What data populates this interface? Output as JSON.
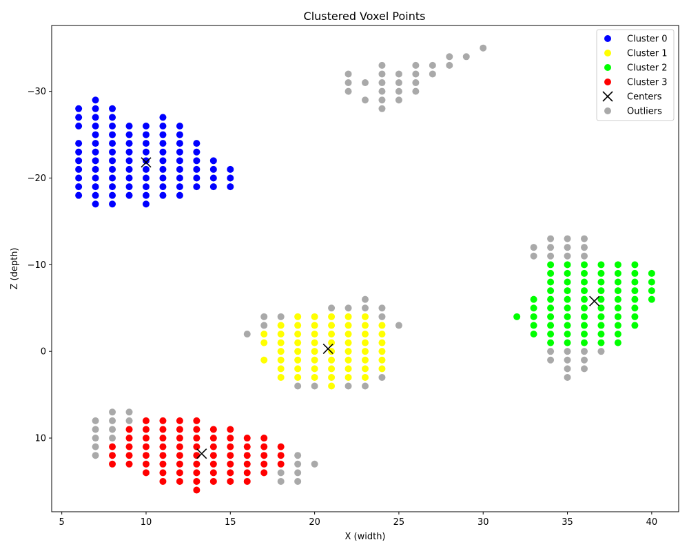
{
  "chart_data": {
    "type": "scatter",
    "title": "Clustered Voxel Points",
    "xlabel": "X (width)",
    "ylabel": "Z (depth)",
    "xlim": [
      4.4,
      41.6
    ],
    "ylim": [
      18.5,
      -37.6
    ],
    "y_inverted": true,
    "x_ticks": [
      5,
      10,
      15,
      20,
      25,
      30,
      35,
      40
    ],
    "x_tick_labels": [
      "5",
      "10",
      "15",
      "20",
      "25",
      "30",
      "35",
      "40"
    ],
    "y_ticks": [
      -30,
      -20,
      -10,
      0,
      10
    ],
    "y_tick_labels": [
      "−30",
      "−20",
      "−10",
      "0",
      "10"
    ],
    "grid": false,
    "legend_position": "top-right",
    "legend": [
      "Cluster 0",
      "Cluster 1",
      "Cluster 2",
      "Cluster 3",
      "Centers",
      "Outliers"
    ],
    "colors": {
      "cluster_0": "#0000ff",
      "cluster_1": "#ffff00",
      "cluster_2": "#00ff00",
      "cluster_3": "#ff0000",
      "centers": "#000000",
      "outliers": "#a9a9a9"
    },
    "series": [
      {
        "name": "Cluster 0",
        "color": "#0000ff",
        "columns": [
          {
            "x": 6,
            "zs": [
              -28,
              -27,
              -26,
              -24,
              -23,
              -22,
              -21,
              -20,
              -19,
              -18
            ]
          },
          {
            "x": 7,
            "zs": [
              -29,
              -28,
              -27,
              -26,
              -25,
              -24,
              -23,
              -22,
              -21,
              -20,
              -19,
              -18,
              -17
            ]
          },
          {
            "x": 8,
            "zs": [
              -28,
              -27,
              -26,
              -25,
              -24,
              -23,
              -22,
              -21,
              -20,
              -19,
              -18,
              -17
            ]
          },
          {
            "x": 9,
            "zs": [
              -26,
              -25,
              -24,
              -23,
              -22,
              -21,
              -20,
              -19,
              -18
            ]
          },
          {
            "x": 10,
            "zs": [
              -26,
              -25,
              -24,
              -23,
              -22,
              -21,
              -20,
              -19,
              -18,
              -17
            ]
          },
          {
            "x": 11,
            "zs": [
              -27,
              -26,
              -25,
              -24,
              -23,
              -22,
              -21,
              -20,
              -19,
              -18
            ]
          },
          {
            "x": 12,
            "zs": [
              -26,
              -25,
              -24,
              -23,
              -22,
              -21,
              -20,
              -19,
              -18
            ]
          },
          {
            "x": 13,
            "zs": [
              -24,
              -23,
              -22,
              -21,
              -20,
              -19
            ]
          },
          {
            "x": 14,
            "zs": [
              -22,
              -21,
              -20,
              -19
            ]
          },
          {
            "x": 15,
            "zs": [
              -21,
              -20,
              -19
            ]
          }
        ]
      },
      {
        "name": "Cluster 1",
        "color": "#ffff00",
        "columns": [
          {
            "x": 17,
            "zs": [
              -2,
              -1,
              1
            ]
          },
          {
            "x": 18,
            "zs": [
              -3,
              -2,
              -1,
              0,
              1,
              2,
              3
            ]
          },
          {
            "x": 19,
            "zs": [
              -4,
              -3,
              -2,
              -1,
              0,
              1,
              2,
              3
            ]
          },
          {
            "x": 20,
            "zs": [
              -4,
              -3,
              -2,
              -1,
              0,
              1,
              2,
              3
            ]
          },
          {
            "x": 21,
            "zs": [
              -4,
              -3,
              -2,
              -1,
              0,
              1,
              2,
              3,
              4
            ]
          },
          {
            "x": 22,
            "zs": [
              -4,
              -3,
              -2,
              -1,
              0,
              1,
              2,
              3
            ]
          },
          {
            "x": 23,
            "zs": [
              -4,
              -3,
              -2,
              -1,
              0,
              1,
              2,
              3
            ]
          },
          {
            "x": 24,
            "zs": [
              -3,
              -2,
              -1,
              0,
              1,
              2
            ]
          }
        ]
      },
      {
        "name": "Cluster 2",
        "color": "#00ff00",
        "columns": [
          {
            "x": 32,
            "zs": [
              -4
            ]
          },
          {
            "x": 33,
            "zs": [
              -6,
              -5,
              -4,
              -3,
              -2
            ]
          },
          {
            "x": 34,
            "zs": [
              -10,
              -9,
              -8,
              -7,
              -6,
              -5,
              -4,
              -3,
              -2,
              -1
            ]
          },
          {
            "x": 35,
            "zs": [
              -10,
              -9,
              -8,
              -7,
              -6,
              -5,
              -4,
              -3,
              -2,
              -1
            ]
          },
          {
            "x": 36,
            "zs": [
              -10,
              -9,
              -8,
              -7,
              -6,
              -5,
              -4,
              -3,
              -2,
              -1
            ]
          },
          {
            "x": 37,
            "zs": [
              -10,
              -9,
              -8,
              -7,
              -6,
              -5,
              -4,
              -3,
              -2,
              -1
            ]
          },
          {
            "x": 38,
            "zs": [
              -10,
              -9,
              -8,
              -7,
              -6,
              -5,
              -4,
              -3,
              -2,
              -1
            ]
          },
          {
            "x": 39,
            "zs": [
              -10,
              -9,
              -8,
              -7,
              -6,
              -5,
              -4,
              -3
            ]
          },
          {
            "x": 40,
            "zs": [
              -9,
              -8,
              -7,
              -6
            ]
          }
        ]
      },
      {
        "name": "Cluster 3",
        "color": "#ff0000",
        "columns": [
          {
            "x": 8,
            "zs": [
              11,
              12,
              13
            ]
          },
          {
            "x": 9,
            "zs": [
              9,
              10,
              11,
              12,
              13
            ]
          },
          {
            "x": 10,
            "zs": [
              8,
              9,
              10,
              11,
              12,
              13,
              14
            ]
          },
          {
            "x": 11,
            "zs": [
              8,
              9,
              10,
              11,
              12,
              13,
              14,
              15
            ]
          },
          {
            "x": 12,
            "zs": [
              8,
              9,
              10,
              11,
              12,
              13,
              14,
              15
            ]
          },
          {
            "x": 13,
            "zs": [
              8,
              9,
              10,
              11,
              12,
              13,
              14,
              15,
              16
            ]
          },
          {
            "x": 14,
            "zs": [
              9,
              10,
              11,
              12,
              13,
              14,
              15
            ]
          },
          {
            "x": 15,
            "zs": [
              9,
              10,
              11,
              12,
              13,
              14,
              15
            ]
          },
          {
            "x": 16,
            "zs": [
              10,
              11,
              12,
              13,
              14,
              15
            ]
          },
          {
            "x": 17,
            "zs": [
              10,
              11,
              12,
              13,
              14
            ]
          },
          {
            "x": 18,
            "zs": [
              11,
              12,
              13
            ]
          }
        ]
      },
      {
        "name": "Outliers",
        "color": "#a9a9a9",
        "points": [
          [
            22,
            -32
          ],
          [
            22,
            -31
          ],
          [
            22,
            -30
          ],
          [
            23,
            -31
          ],
          [
            23,
            -29
          ],
          [
            24,
            -33
          ],
          [
            24,
            -32
          ],
          [
            24,
            -31
          ],
          [
            24,
            -30
          ],
          [
            24,
            -29
          ],
          [
            24,
            -28
          ],
          [
            25,
            -32
          ],
          [
            25,
            -31
          ],
          [
            25,
            -30
          ],
          [
            25,
            -29
          ],
          [
            26,
            -33
          ],
          [
            26,
            -32
          ],
          [
            26,
            -31
          ],
          [
            26,
            -30
          ],
          [
            27,
            -33
          ],
          [
            27,
            -32
          ],
          [
            28,
            -34
          ],
          [
            28,
            -33
          ],
          [
            29,
            -34
          ],
          [
            30,
            -35
          ],
          [
            33,
            -12
          ],
          [
            33,
            -11
          ],
          [
            34,
            -13
          ],
          [
            34,
            -12
          ],
          [
            34,
            -11
          ],
          [
            34,
            0
          ],
          [
            34,
            1
          ],
          [
            35,
            -13
          ],
          [
            35,
            -12
          ],
          [
            35,
            -11
          ],
          [
            35,
            0
          ],
          [
            35,
            1
          ],
          [
            35,
            2
          ],
          [
            35,
            3
          ],
          [
            36,
            -13
          ],
          [
            36,
            -12
          ],
          [
            36,
            -11
          ],
          [
            36,
            0
          ],
          [
            36,
            1
          ],
          [
            36,
            2
          ],
          [
            37,
            0
          ],
          [
            16,
            -2
          ],
          [
            17,
            -4
          ],
          [
            17,
            -3
          ],
          [
            18,
            -4
          ],
          [
            19,
            4
          ],
          [
            20,
            4
          ],
          [
            21,
            -5
          ],
          [
            22,
            -5
          ],
          [
            22,
            4
          ],
          [
            23,
            -6
          ],
          [
            23,
            -5
          ],
          [
            23,
            4
          ],
          [
            24,
            -5
          ],
          [
            24,
            -4
          ],
          [
            24,
            3
          ],
          [
            25,
            -3
          ],
          [
            7,
            8
          ],
          [
            7,
            9
          ],
          [
            7,
            10
          ],
          [
            7,
            11
          ],
          [
            7,
            12
          ],
          [
            8,
            7
          ],
          [
            8,
            8
          ],
          [
            8,
            9
          ],
          [
            8,
            10
          ],
          [
            9,
            7
          ],
          [
            9,
            8
          ],
          [
            18,
            14
          ],
          [
            18,
            15
          ],
          [
            19,
            12
          ],
          [
            19,
            13
          ],
          [
            19,
            14
          ],
          [
            19,
            15
          ],
          [
            20,
            13
          ]
        ]
      }
    ],
    "centers": [
      {
        "name": "Cluster 0 center",
        "x": 10,
        "z": -21.8
      },
      {
        "name": "Cluster 1 center",
        "x": 20.8,
        "z": -0.3
      },
      {
        "name": "Cluster 2 center",
        "x": 36.6,
        "z": -5.8
      },
      {
        "name": "Cluster 3 center",
        "x": 13.3,
        "z": 11.8
      }
    ]
  }
}
